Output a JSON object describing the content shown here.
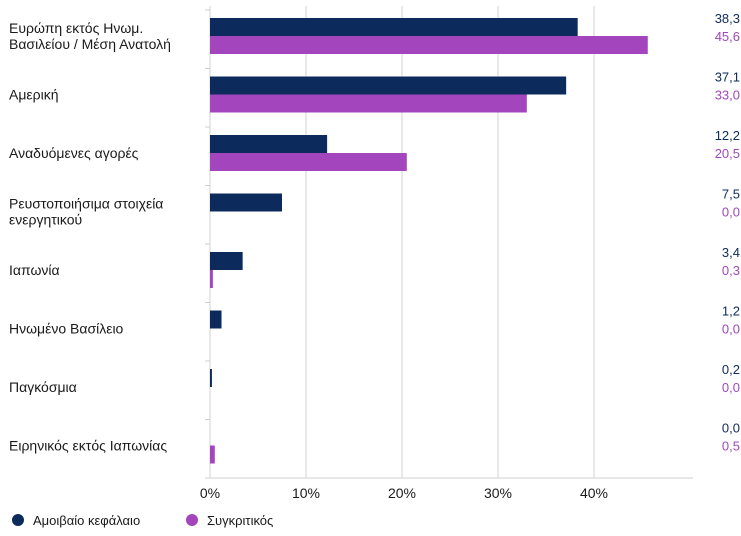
{
  "chart_data": {
    "type": "bar",
    "orientation": "horizontal",
    "categories": [
      [
        "Ευρώπη εκτός Ηνωμ.",
        "Βασιλείου / Μέση Ανατολή"
      ],
      [
        "Αμερική"
      ],
      [
        "Αναδυόμενες αγορές"
      ],
      [
        "Ρευστοποιήσιμα στοιχεία",
        "ενεργητικού"
      ],
      [
        "Ιαπωνία"
      ],
      [
        "Ηνωμένο Βασίλειο"
      ],
      [
        "Παγκόσμια"
      ],
      [
        "Ειρηνικός εκτός Ιαπωνίας"
      ]
    ],
    "series": [
      {
        "name": "Αμοιβαίο κεφάλαιο",
        "color": "#0d2a5c",
        "values": [
          38.3,
          37.1,
          12.2,
          7.5,
          3.4,
          1.2,
          0.2,
          0.0
        ],
        "value_labels": [
          "38,3",
          "37,1",
          "12,2",
          "7,5",
          "3,4",
          "1,2",
          "0,2",
          "0,0"
        ]
      },
      {
        "name": "Συγκριτικός",
        "color": "#a346bd",
        "values": [
          45.6,
          33.0,
          20.5,
          0.0,
          0.3,
          0.0,
          0.0,
          0.5
        ],
        "value_labels": [
          "45,6",
          "33,0",
          "20,5",
          "0,0",
          "0,3",
          "0,0",
          "0,0",
          "0,5"
        ]
      }
    ],
    "xticks": [
      0,
      10,
      20,
      30,
      40
    ],
    "xtick_labels": [
      "0%",
      "10%",
      "20%",
      "30%",
      "40%"
    ],
    "xlim": [
      0,
      50
    ],
    "legend_position": "bottom-left",
    "grid": true
  }
}
